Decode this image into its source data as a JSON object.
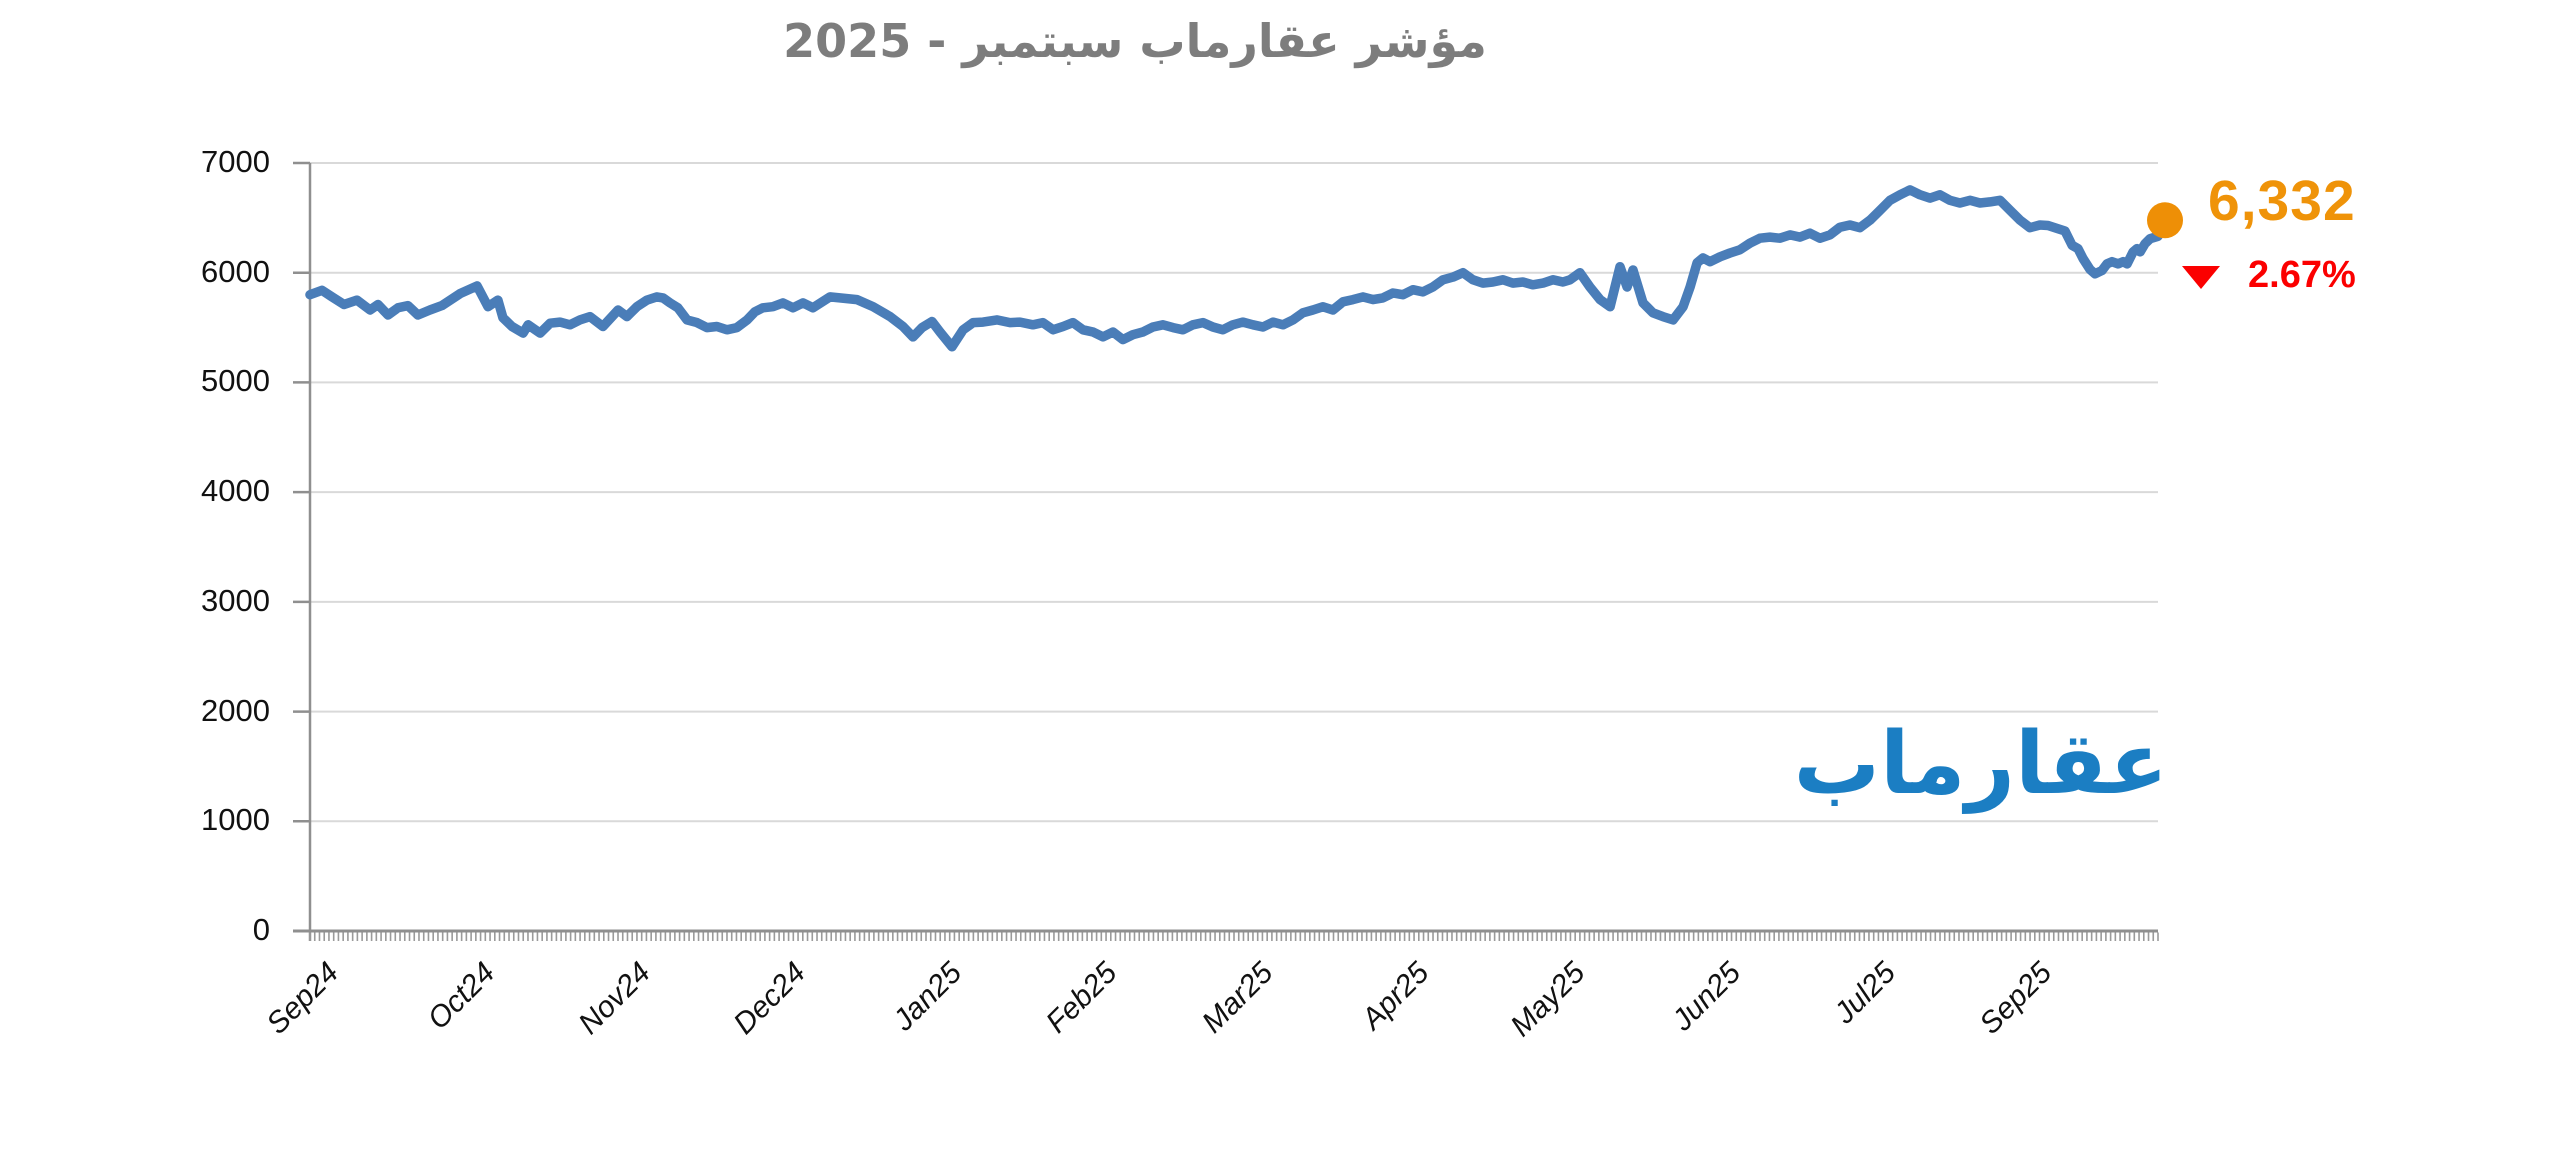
{
  "title": "مؤشر عقارماب سبتمبر - 2025",
  "watermark": "عقارماب",
  "annotation": {
    "value": "6,332",
    "change": "2.67%",
    "direction": "down"
  },
  "colors": {
    "line": "#4a7db8",
    "marker": "#ee8f06",
    "value_text": "#ef9309",
    "change_text": "#fb0000",
    "title_text": "#7d7d7d",
    "grid": "#d9d9d9",
    "axis": "#8f8f8f",
    "minor_tick": "#9a9a9a",
    "label_text": "#111111",
    "logo": "#1b7ec3"
  },
  "chart_data": {
    "type": "line",
    "title": "مؤشر عقارماب سبتمبر - 2025",
    "x_tick_labels": [
      "Sep24",
      "Oct24",
      "Nov24",
      "Dec24",
      "Jan25",
      "Feb25",
      "Mar25",
      "Apr25",
      "May25",
      "Jun25",
      "Jul25",
      "Sep25"
    ],
    "y_ticks": [
      0,
      1000,
      2000,
      3000,
      4000,
      5000,
      6000,
      7000
    ],
    "ylim": [
      0,
      7000
    ],
    "grid": "horizontal-light",
    "legend": "none",
    "minor_x_tick_count": 390,
    "last_value": 6332,
    "change_pct": -2.67,
    "series": [
      {
        "name": "مؤشر عقارماب",
        "points": [
          [
            0.0,
            5800
          ],
          [
            0.0065,
            5840
          ],
          [
            0.0119,
            5780
          ],
          [
            0.0184,
            5710
          ],
          [
            0.0254,
            5750
          ],
          [
            0.0325,
            5660
          ],
          [
            0.0368,
            5710
          ],
          [
            0.0422,
            5615
          ],
          [
            0.0476,
            5680
          ],
          [
            0.053,
            5700
          ],
          [
            0.0584,
            5615
          ],
          [
            0.0649,
            5660
          ],
          [
            0.0714,
            5700
          ],
          [
            0.0812,
            5810
          ],
          [
            0.0904,
            5880
          ],
          [
            0.0963,
            5690
          ],
          [
            0.1017,
            5750
          ],
          [
            0.1044,
            5590
          ],
          [
            0.1093,
            5510
          ],
          [
            0.1153,
            5450
          ],
          [
            0.118,
            5525
          ],
          [
            0.1245,
            5450
          ],
          [
            0.1299,
            5540
          ],
          [
            0.1353,
            5550
          ],
          [
            0.1407,
            5525
          ],
          [
            0.1461,
            5570
          ],
          [
            0.1515,
            5600
          ],
          [
            0.1585,
            5510
          ],
          [
            0.1634,
            5600
          ],
          [
            0.1667,
            5660
          ],
          [
            0.1715,
            5600
          ],
          [
            0.1769,
            5690
          ],
          [
            0.1823,
            5750
          ],
          [
            0.1877,
            5780
          ],
          [
            0.191,
            5770
          ],
          [
            0.1948,
            5725
          ],
          [
            0.1991,
            5680
          ],
          [
            0.204,
            5570
          ],
          [
            0.2094,
            5545
          ],
          [
            0.2148,
            5500
          ],
          [
            0.2202,
            5510
          ],
          [
            0.2256,
            5480
          ],
          [
            0.231,
            5500
          ],
          [
            0.2365,
            5570
          ],
          [
            0.2408,
            5645
          ],
          [
            0.2451,
            5680
          ],
          [
            0.2505,
            5690
          ],
          [
            0.2559,
            5725
          ],
          [
            0.2614,
            5680
          ],
          [
            0.2668,
            5725
          ],
          [
            0.2722,
            5680
          ],
          [
            0.2814,
            5780
          ],
          [
            0.296,
            5755
          ],
          [
            0.3047,
            5690
          ],
          [
            0.3139,
            5600
          ],
          [
            0.3209,
            5510
          ],
          [
            0.3263,
            5415
          ],
          [
            0.3312,
            5500
          ],
          [
            0.3366,
            5555
          ],
          [
            0.3409,
            5460
          ],
          [
            0.3474,
            5325
          ],
          [
            0.3534,
            5480
          ],
          [
            0.3588,
            5545
          ],
          [
            0.3642,
            5550
          ],
          [
            0.3717,
            5570
          ],
          [
            0.3788,
            5545
          ],
          [
            0.3842,
            5550
          ],
          [
            0.3912,
            5525
          ],
          [
            0.3966,
            5545
          ],
          [
            0.4021,
            5480
          ],
          [
            0.4075,
            5510
          ],
          [
            0.4129,
            5545
          ],
          [
            0.4183,
            5480
          ],
          [
            0.4237,
            5460
          ],
          [
            0.4291,
            5415
          ],
          [
            0.4345,
            5460
          ],
          [
            0.4399,
            5390
          ],
          [
            0.4453,
            5435
          ],
          [
            0.4507,
            5460
          ],
          [
            0.4561,
            5505
          ],
          [
            0.4616,
            5525
          ],
          [
            0.467,
            5500
          ],
          [
            0.4724,
            5480
          ],
          [
            0.4778,
            5525
          ],
          [
            0.4832,
            5545
          ],
          [
            0.4886,
            5505
          ],
          [
            0.494,
            5480
          ],
          [
            0.4994,
            5525
          ],
          [
            0.5048,
            5550
          ],
          [
            0.5103,
            5525
          ],
          [
            0.5157,
            5505
          ],
          [
            0.5211,
            5550
          ],
          [
            0.5265,
            5525
          ],
          [
            0.5319,
            5570
          ],
          [
            0.5373,
            5635
          ],
          [
            0.5427,
            5660
          ],
          [
            0.5481,
            5690
          ],
          [
            0.5535,
            5660
          ],
          [
            0.559,
            5735
          ],
          [
            0.5644,
            5755
          ],
          [
            0.5698,
            5780
          ],
          [
            0.5752,
            5755
          ],
          [
            0.5806,
            5770
          ],
          [
            0.586,
            5815
          ],
          [
            0.5914,
            5800
          ],
          [
            0.5968,
            5845
          ],
          [
            0.6022,
            5825
          ],
          [
            0.6076,
            5870
          ],
          [
            0.6131,
            5935
          ],
          [
            0.6185,
            5960
          ],
          [
            0.6239,
            6000
          ],
          [
            0.6293,
            5935
          ],
          [
            0.6347,
            5905
          ],
          [
            0.6401,
            5915
          ],
          [
            0.6455,
            5935
          ],
          [
            0.6509,
            5905
          ],
          [
            0.6563,
            5915
          ],
          [
            0.6617,
            5890
          ],
          [
            0.6672,
            5905
          ],
          [
            0.6726,
            5935
          ],
          [
            0.678,
            5915
          ],
          [
            0.6818,
            5935
          ],
          [
            0.6872,
            6000
          ],
          [
            0.6926,
            5870
          ],
          [
            0.6981,
            5755
          ],
          [
            0.7035,
            5690
          ],
          [
            0.7089,
            6055
          ],
          [
            0.7127,
            5870
          ],
          [
            0.7159,
            6025
          ],
          [
            0.7213,
            5725
          ],
          [
            0.7267,
            5635
          ],
          [
            0.7321,
            5600
          ],
          [
            0.7376,
            5570
          ],
          [
            0.743,
            5690
          ],
          [
            0.7468,
            5870
          ],
          [
            0.7506,
            6090
          ],
          [
            0.7538,
            6135
          ],
          [
            0.7576,
            6100
          ],
          [
            0.763,
            6145
          ],
          [
            0.7684,
            6180
          ],
          [
            0.7738,
            6210
          ],
          [
            0.7792,
            6270
          ],
          [
            0.7846,
            6315
          ],
          [
            0.79,
            6325
          ],
          [
            0.7954,
            6315
          ],
          [
            0.8009,
            6345
          ],
          [
            0.8063,
            6325
          ],
          [
            0.8117,
            6360
          ],
          [
            0.8171,
            6315
          ],
          [
            0.8225,
            6345
          ],
          [
            0.8279,
            6415
          ],
          [
            0.8333,
            6435
          ],
          [
            0.8387,
            6410
          ],
          [
            0.8442,
            6480
          ],
          [
            0.8496,
            6570
          ],
          [
            0.855,
            6660
          ],
          [
            0.8604,
            6710
          ],
          [
            0.8658,
            6755
          ],
          [
            0.8712,
            6710
          ],
          [
            0.8766,
            6680
          ],
          [
            0.882,
            6710
          ],
          [
            0.8874,
            6660
          ],
          [
            0.8928,
            6635
          ],
          [
            0.8983,
            6660
          ],
          [
            0.9037,
            6635
          ],
          [
            0.9091,
            6645
          ],
          [
            0.9145,
            6660
          ],
          [
            0.9199,
            6570
          ],
          [
            0.9253,
            6480
          ],
          [
            0.9307,
            6410
          ],
          [
            0.9361,
            6435
          ],
          [
            0.9405,
            6430
          ],
          [
            0.9459,
            6400
          ],
          [
            0.9497,
            6380
          ],
          [
            0.9535,
            6250
          ],
          [
            0.9567,
            6220
          ],
          [
            0.9594,
            6130
          ],
          [
            0.9632,
            6030
          ],
          [
            0.9659,
            5990
          ],
          [
            0.9697,
            6020
          ],
          [
            0.9724,
            6080
          ],
          [
            0.9751,
            6100
          ],
          [
            0.9784,
            6080
          ],
          [
            0.9811,
            6100
          ],
          [
            0.9833,
            6080
          ],
          [
            0.9865,
            6190
          ],
          [
            0.9887,
            6220
          ],
          [
            0.9903,
            6190
          ],
          [
            0.993,
            6265
          ],
          [
            0.9957,
            6310
          ],
          [
            1.0,
            6332
          ]
        ]
      }
    ]
  }
}
